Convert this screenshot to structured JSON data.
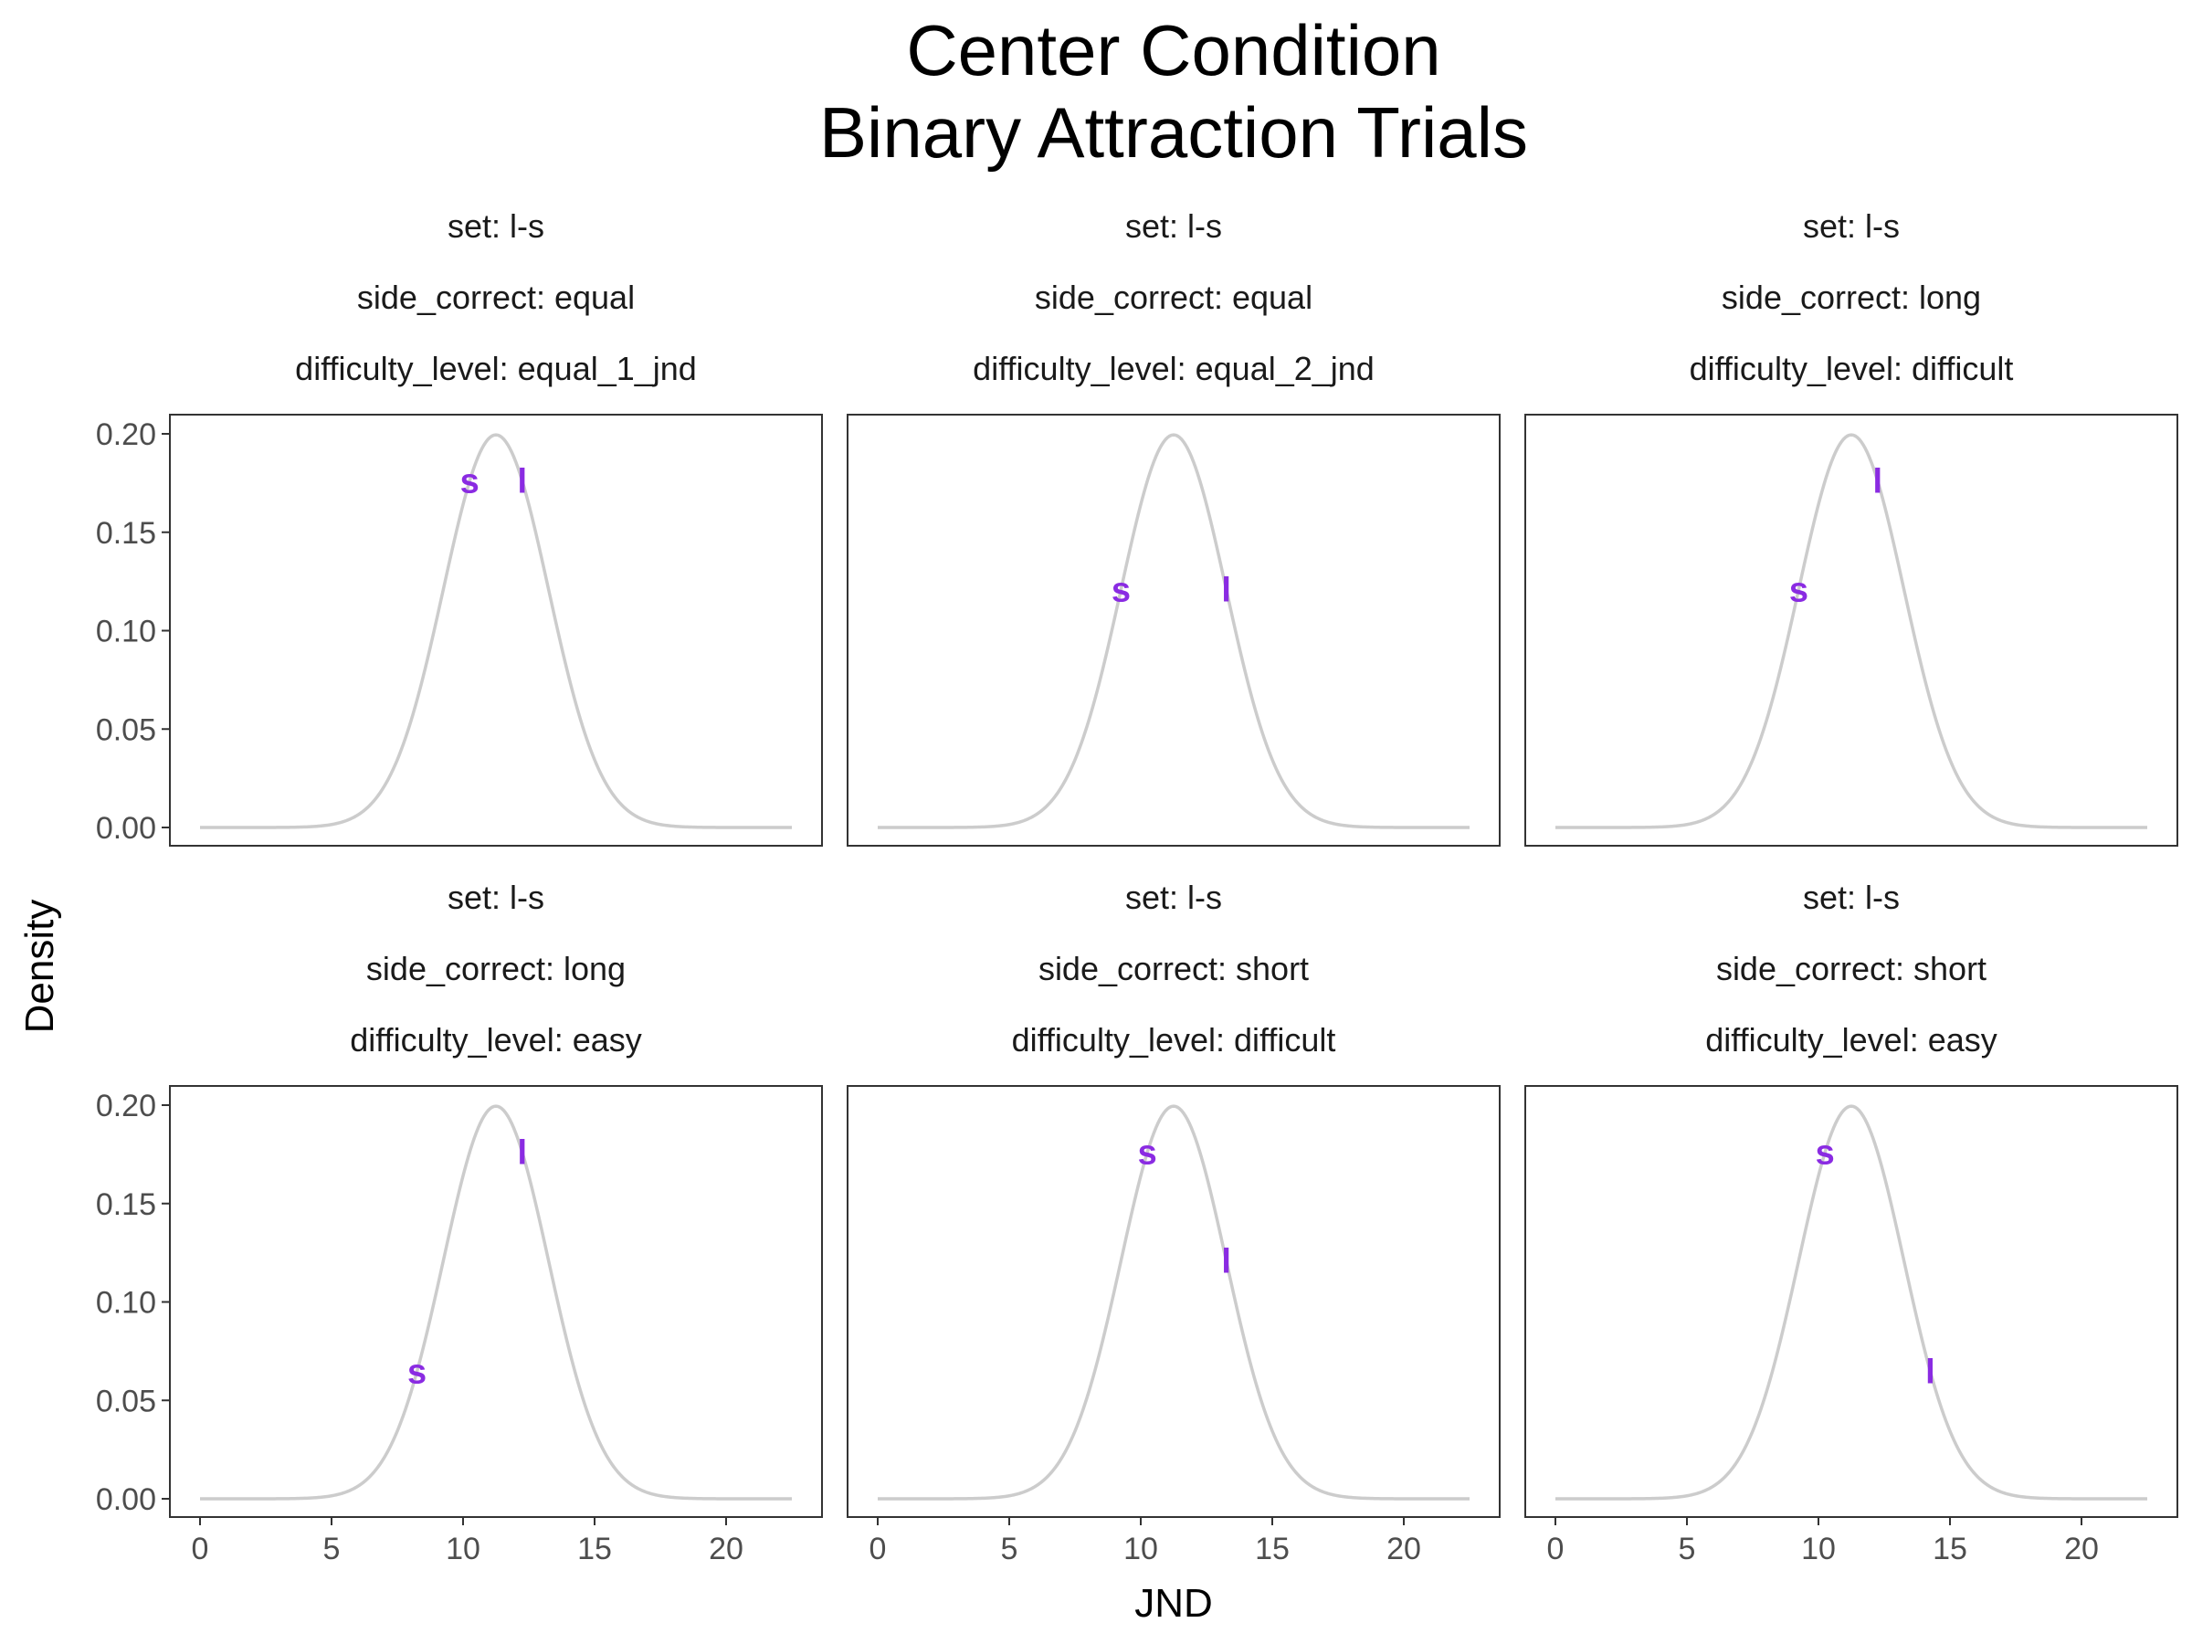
{
  "chart_data": {
    "type": "line",
    "title": [
      "Center Condition",
      "Binary Attraction Trials"
    ],
    "xlabel": "JND",
    "ylabel": "Density",
    "xlim": [
      0,
      22.5
    ],
    "ylim": [
      0,
      0.2
    ],
    "x_ticks": [
      "0",
      "5",
      "10",
      "15",
      "20"
    ],
    "y_ticks": [
      "0.00",
      "0.05",
      "0.10",
      "0.15",
      "0.20"
    ],
    "distribution": {
      "kind": "normal",
      "mean": 11.25,
      "sd": 2.0
    },
    "marker_color": "#8a2be2",
    "curve_color": "#cccccc",
    "grid": false,
    "legend": "none",
    "panels": [
      {
        "strip": [
          "set: l-s",
          "side_correct: equal",
          "difficulty_level: equal_1_jnd"
        ],
        "markers": [
          {
            "label": "s",
            "x": 10.25
          },
          {
            "label": "l",
            "x": 12.25
          }
        ]
      },
      {
        "strip": [
          "set: l-s",
          "side_correct: equal",
          "difficulty_level: equal_2_jnd"
        ],
        "markers": [
          {
            "label": "s",
            "x": 9.25
          },
          {
            "label": "l",
            "x": 13.25
          }
        ]
      },
      {
        "strip": [
          "set: l-s",
          "side_correct: long",
          "difficulty_level: difficult"
        ],
        "markers": [
          {
            "label": "s",
            "x": 9.25
          },
          {
            "label": "l",
            "x": 12.25
          }
        ]
      },
      {
        "strip": [
          "set: l-s",
          "side_correct: long",
          "difficulty_level: easy"
        ],
        "markers": [
          {
            "label": "s",
            "x": 8.25
          },
          {
            "label": "l",
            "x": 12.25
          }
        ]
      },
      {
        "strip": [
          "set: l-s",
          "side_correct: short",
          "difficulty_level: difficult"
        ],
        "markers": [
          {
            "label": "s",
            "x": 10.25
          },
          {
            "label": "l",
            "x": 13.25
          }
        ]
      },
      {
        "strip": [
          "set: l-s",
          "side_correct: short",
          "difficulty_level: easy"
        ],
        "markers": [
          {
            "label": "s",
            "x": 10.25
          },
          {
            "label": "l",
            "x": 14.25
          }
        ]
      }
    ]
  }
}
